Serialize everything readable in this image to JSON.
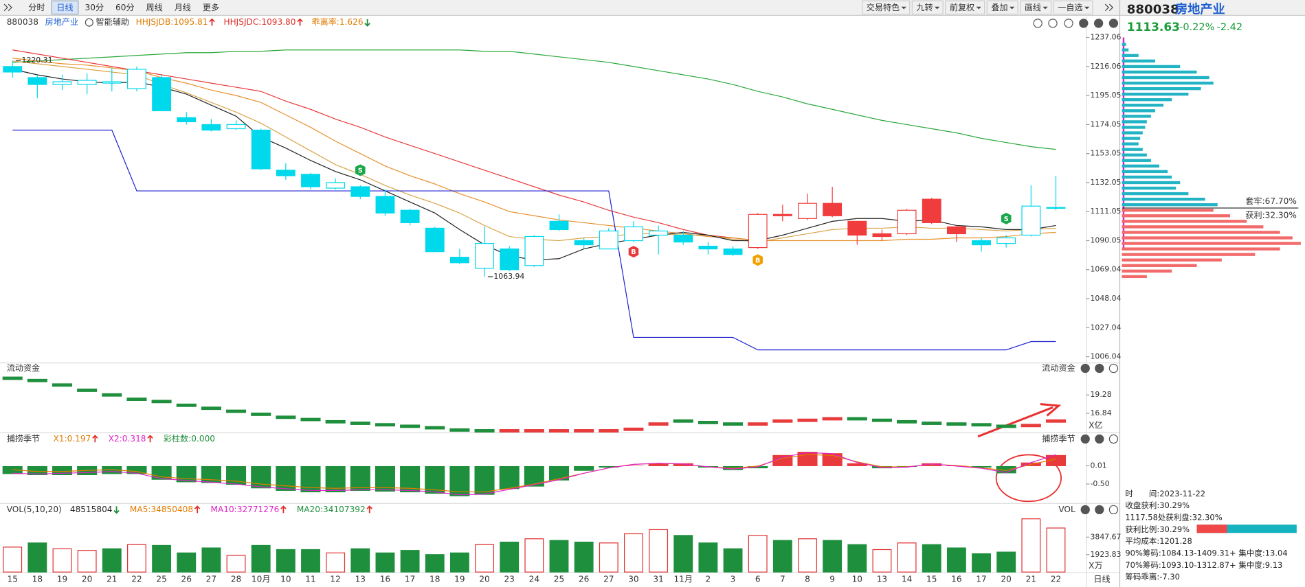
{
  "toolbar": {
    "left": [
      "分时",
      "日线",
      "30分",
      "60分",
      "周线",
      "月线",
      "更多"
    ],
    "active": 1,
    "right": [
      "交易特色",
      "九转",
      "前复权",
      "叠加",
      "画线",
      "一自选"
    ]
  },
  "quote": {
    "code": "880038",
    "name": "房地产业",
    "price": 1113.63,
    "change_pct": "-0.22%",
    "change": "-2.42"
  },
  "main": {
    "code": "880038",
    "name": "房地产业",
    "assist": "智能辅助",
    "legend": [
      {
        "text": "HHJSJDB:1095.81",
        "color": "#e07b00",
        "arrow": "up"
      },
      {
        "text": "HHJSJDC:1093.80",
        "color": "#e0302a",
        "arrow": "up"
      },
      {
        "text": "乖离率:1.626",
        "color": "#e07b00",
        "arrow": "down"
      }
    ],
    "ylim": [
      1006.04,
      1237.06
    ],
    "yticks": [
      1237.06,
      1216.06,
      1195.05,
      1174.05,
      1153.05,
      1132.05,
      1111.05,
      1090.05,
      1069.04,
      1048.04,
      1027.04,
      1006.04
    ],
    "dates": [
      "15",
      "18",
      "19",
      "20",
      "21",
      "22",
      "25",
      "26",
      "27",
      "28",
      "10月",
      "10",
      "11",
      "12",
      "13",
      "16",
      "17",
      "18",
      "19",
      "20",
      "23",
      "24",
      "25",
      "26",
      "27",
      "30",
      "31",
      "11月",
      "2",
      "3",
      "6",
      "7",
      "8",
      "9",
      "10",
      "13",
      "14",
      "15",
      "16",
      "17",
      "20",
      "21",
      "22"
    ],
    "candles": {
      "open": [
        1216,
        1208,
        1203,
        1203,
        1204,
        1200,
        1208,
        1179,
        1174,
        1171,
        1170,
        1141,
        1138,
        1128,
        1129,
        1122,
        1112,
        1099,
        1078,
        1070,
        1084,
        1072,
        1104,
        1090,
        1084,
        1090,
        1094,
        1094,
        1086,
        1084,
        1085,
        1108,
        1106,
        1117,
        1104,
        1093,
        1095,
        1120,
        1100,
        1090,
        1088,
        1094,
        1114
      ],
      "high": [
        1220.31,
        1210,
        1210,
        1211,
        1215,
        1216,
        1210,
        1183,
        1178,
        1177,
        1171,
        1146,
        1139,
        1135,
        1130,
        1127,
        1113,
        1100,
        1084,
        1100,
        1086,
        1094,
        1109,
        1092,
        1099,
        1104,
        1101,
        1097,
        1089,
        1086,
        1110,
        1116,
        1124,
        1129,
        1104,
        1098,
        1113,
        1121,
        1101,
        1092,
        1094,
        1130,
        1137
      ],
      "low": [
        1208,
        1193,
        1199,
        1196,
        1198,
        1198,
        1184,
        1174,
        1169,
        1170,
        1141,
        1134,
        1127,
        1127,
        1120,
        1108,
        1101,
        1082,
        1073,
        1063.94,
        1068,
        1071,
        1097,
        1084,
        1084,
        1089,
        1080,
        1087,
        1080,
        1079,
        1084,
        1104,
        1105,
        1107,
        1087,
        1090,
        1094,
        1102,
        1089,
        1082,
        1085,
        1093,
        1112
      ],
      "close": [
        1212,
        1203,
        1205,
        1206,
        1205,
        1214,
        1184,
        1176,
        1170,
        1174,
        1142,
        1137,
        1129,
        1132,
        1122,
        1110,
        1103,
        1082,
        1074,
        1088,
        1069,
        1093,
        1098,
        1087,
        1097,
        1100,
        1097,
        1089,
        1084,
        1080,
        1109,
        1109,
        1117,
        1108,
        1094,
        1095,
        1112,
        1103,
        1095,
        1087,
        1092,
        1115,
        1113.63
      ],
      "colors": [
        "#00d8ec",
        "#00d8ec",
        "#00d8ec",
        "#00d8ec",
        "#00d8ec",
        "#00d8ec",
        "#00d8ec",
        "#00d8ec",
        "#00d8ec",
        "#00d8ec",
        "#00d8ec",
        "#00d8ec",
        "#00d8ec",
        "#00d8ec",
        "#00d8ec",
        "#00d8ec",
        "#00d8ec",
        "#00d8ec",
        "#00d8ec",
        "#00d8ec",
        "#00d8ec",
        "#00d8ec",
        "#00d8ec",
        "#00d8ec",
        "#00d8ec",
        "#00d8ec",
        "#00d8ec",
        "#00d8ec",
        "#00d8ec",
        "#00d8ec",
        "#f03c3c",
        "#f03c3c",
        "#f03c3c",
        "#f03c3c",
        "#f03c3c",
        "#f03c3c",
        "#f03c3c",
        "#f03c3c",
        "#f03c3c",
        "#00d8ec",
        "#00d8ec",
        "#00d8ec",
        "#00d8ec"
      ],
      "hollow": [
        false,
        false,
        true,
        true,
        true,
        true,
        false,
        false,
        false,
        true,
        false,
        false,
        false,
        true,
        false,
        false,
        false,
        false,
        false,
        true,
        false,
        true,
        false,
        false,
        true,
        true,
        true,
        false,
        false,
        false,
        true,
        false,
        true,
        false,
        false,
        false,
        true,
        false,
        false,
        false,
        true,
        true,
        false
      ]
    },
    "lines": [
      {
        "color": "#2aa83a",
        "values": [
          1219,
          1220,
          1221,
          1222,
          1223,
          1224,
          1225,
          1226,
          1226,
          1227,
          1227,
          1228,
          1228,
          1228,
          1228,
          1228,
          1228,
          1228,
          1228,
          1227,
          1227,
          1225,
          1223,
          1221,
          1219,
          1216,
          1213,
          1210,
          1207,
          1203,
          1198,
          1194,
          1189,
          1185,
          1181,
          1177,
          1174,
          1171,
          1168,
          1164,
          1161,
          1158,
          1156
        ]
      },
      {
        "color": "#e83a3a",
        "values": [
          1228,
          1225,
          1222,
          1219,
          1216,
          1213,
          1210,
          1207,
          1204,
          1201,
          1198,
          1191,
          1185,
          1178,
          1172,
          1165,
          1159,
          1153,
          1147,
          1141,
          1135,
          1129,
          1123,
          1118,
          1112,
          1107,
          1103,
          1098,
          1094,
          1092,
          1090,
          null,
          null,
          null,
          null,
          null,
          null,
          null,
          null,
          null,
          null,
          null,
          null
        ]
      },
      {
        "color": "#e8902a",
        "values": [
          1222,
          1220,
          1218,
          1217,
          1215,
          1213,
          1208,
          1204,
          1199,
          1195,
          1190,
          1181,
          1172,
          1162,
          1153,
          1144,
          1137,
          1131,
          1124,
          1118,
          1111,
          1108,
          1105,
          1103,
          1101,
          1099,
          1097,
          1095,
          1093,
          1092,
          1090,
          1090,
          1090,
          1090,
          1090,
          1090,
          1091,
          1091,
          1092,
          1092,
          1093,
          1095,
          1096
        ]
      },
      {
        "color": "#d9a54a",
        "values": [
          1220,
          1218,
          1216,
          1214,
          1212,
          1210,
          1203,
          1197,
          1190,
          1183,
          1175,
          1165,
          1155,
          1145,
          1138,
          1130,
          1123,
          1117,
          1110,
          1101,
          1093,
          1091,
          1090,
          1092,
          1093,
          1095,
          1095,
          1094,
          1094,
          1091,
          1089,
          1092,
          1095,
          1098,
          1099,
          1099,
          1100,
          1099,
          1099,
          1098,
          1097,
          1098,
          1099
        ]
      },
      {
        "color": "#222222",
        "values": [
          1214,
          1210,
          1207,
          1205,
          1204,
          1205,
          1201,
          1196,
          1188,
          1180,
          1165,
          1157,
          1148,
          1140,
          1134,
          1126,
          1118,
          1110,
          1098,
          1087,
          1079,
          1076,
          1077,
          1084,
          1088,
          1091,
          1094,
          1096,
          1094,
          1090,
          1090,
          1094,
          1099,
          1104,
          1106,
          1106,
          1104,
          1105,
          1101,
          1100,
          1098,
          1098,
          1101
        ]
      },
      {
        "color": "#2020d0",
        "values": [
          1170,
          1170,
          1170,
          1170,
          1170,
          1126,
          1126,
          1126,
          1126,
          1126,
          1126,
          1126,
          1126,
          1126,
          1126,
          1126,
          1126,
          1126,
          1126,
          1126,
          1126,
          1126,
          1126,
          1126,
          1126,
          1020,
          1020,
          1020,
          1020,
          1020,
          1011,
          1011,
          1011,
          1011,
          1011,
          1011,
          1011,
          1011,
          1011,
          1011,
          1011,
          1017,
          1017
        ]
      }
    ],
    "annotations": [
      {
        "value": 1220.31,
        "index": 0
      },
      {
        "value": 1063.94,
        "index": 19
      }
    ],
    "signals": [
      {
        "text": "S",
        "index": 14,
        "value": 1141,
        "color": "#1aa84a"
      },
      {
        "text": "B",
        "index": 25,
        "value": 1082,
        "color": "#e83a3a"
      },
      {
        "text": "B",
        "index": 30,
        "value": 1076,
        "color": "#f0a000"
      },
      {
        "text": "S",
        "index": 40,
        "value": 1106,
        "color": "#1aa84a"
      }
    ]
  },
  "chips": {
    "levels": [
      1232,
      1228,
      1224,
      1220,
      1216,
      1212,
      1208,
      1204,
      1200,
      1196,
      1192,
      1188,
      1184,
      1180,
      1176,
      1172,
      1168,
      1164,
      1160,
      1156,
      1152,
      1148,
      1144,
      1140,
      1136,
      1132,
      1128,
      1124,
      1120,
      1116,
      1112,
      1108,
      1104,
      1100,
      1096,
      1092,
      1088,
      1084,
      1080,
      1076,
      1072,
      1068,
      1064
    ],
    "amounts": [
      5,
      8,
      20,
      40,
      70,
      90,
      105,
      110,
      95,
      80,
      60,
      50,
      40,
      35,
      30,
      28,
      25,
      22,
      20,
      25,
      30,
      35,
      45,
      55,
      60,
      70,
      65,
      80,
      100,
      115,
      110,
      130,
      150,
      170,
      190,
      205,
      215,
      190,
      160,
      120,
      90,
      60,
      30
    ],
    "above_color": "#22b4c4",
    "below_color": "#f26a6a",
    "trapped_label": "套牢:67.70%",
    "profit_label": "获利:32.30%"
  },
  "flow": {
    "title": "流动资金",
    "unit": "X亿",
    "ylim": [
      14.29,
      23.49
    ],
    "yticks": [
      19.28,
      16.84
    ],
    "values": [
      21.5,
      21.2,
      20.6,
      19.9,
      19.28,
      18.7,
      18.4,
      17.9,
      17.5,
      17.1,
      16.7,
      16.3,
      16.0,
      15.7,
      15.5,
      15.3,
      15.1,
      14.9,
      14.6,
      14.5,
      14.5,
      14.5,
      14.5,
      14.5,
      14.5,
      14.7,
      15.4,
      15.8,
      15.6,
      15.4,
      15.4,
      15.8,
      15.9,
      16.1,
      16.1,
      15.9,
      15.7,
      15.5,
      15.4,
      15.3,
      15.1,
      15.2,
      15.8
    ],
    "colors": [
      "#1e8f3c",
      "#1e8f3c",
      "#1e8f3c",
      "#1e8f3c",
      "#1e8f3c",
      "#1e8f3c",
      "#1e8f3c",
      "#1e8f3c",
      "#1e8f3c",
      "#1e8f3c",
      "#1e8f3c",
      "#1e8f3c",
      "#1e8f3c",
      "#1e8f3c",
      "#1e8f3c",
      "#1e8f3c",
      "#1e8f3c",
      "#1e8f3c",
      "#1e8f3c",
      "#1e8f3c",
      "#e83b3b",
      "#e83b3b",
      "#e83b3b",
      "#e83b3b",
      "#e83b3b",
      "#e83b3b",
      "#e83b3b",
      "#1e8f3c",
      "#1e8f3c",
      "#1e8f3c",
      "#e83b3b",
      "#e83b3b",
      "#e83b3b",
      "#e83b3b",
      "#1e8f3c",
      "#1e8f3c",
      "#1e8f3c",
      "#1e8f3c",
      "#1e8f3c",
      "#1e8f3c",
      "#1e8f3c",
      "#e83b3b",
      "#e83b3b"
    ]
  },
  "season": {
    "title": "捕捞季节",
    "legend": [
      {
        "text": "X1:0.197",
        "color": "#e07b00",
        "arrow": "up"
      },
      {
        "text": "X2:0.318",
        "color": "#e020c8",
        "arrow": "up"
      },
      {
        "text": "彩柱数:0.000",
        "color": "#1e8f3c",
        "arrow": null
      }
    ],
    "ylim": [
      -1.03,
      0.92
    ],
    "yticks": [
      0.01,
      {
        "value": -0.5,
        "label": "-0.50"
      }
    ],
    "bars": [
      -0.22,
      -0.25,
      -0.25,
      -0.25,
      -0.22,
      -0.22,
      -0.38,
      -0.45,
      -0.47,
      -0.52,
      -0.62,
      -0.69,
      -0.73,
      -0.73,
      -0.69,
      -0.71,
      -0.73,
      -0.77,
      -0.84,
      -0.8,
      -0.64,
      -0.57,
      -0.4,
      -0.13,
      -0.04,
      0.01,
      0.08,
      0.08,
      -0.04,
      -0.11,
      -0.06,
      0.31,
      0.4,
      0.36,
      0.08,
      -0.06,
      -0.02,
      0.08,
      0.01,
      -0.04,
      -0.2,
      0.1,
      0.31
    ],
    "up_color": "#e8393c",
    "down_color": "#1e8f3c",
    "lines": [
      {
        "color": "#e07b00",
        "values": [
          -0.1,
          -0.15,
          -0.15,
          -0.12,
          -0.1,
          -0.15,
          -0.3,
          -0.35,
          -0.38,
          -0.42,
          -0.5,
          -0.55,
          -0.6,
          -0.62,
          -0.6,
          -0.6,
          -0.62,
          -0.66,
          -0.72,
          -0.72,
          -0.62,
          -0.5,
          -0.35,
          -0.2,
          -0.05,
          0.05,
          0.08,
          0.06,
          -0.02,
          -0.06,
          0.0,
          0.22,
          0.32,
          0.3,
          0.12,
          -0.02,
          -0.02,
          0.05,
          0.02,
          -0.05,
          -0.12,
          0.05,
          0.197
        ]
      },
      {
        "color": "#e020c8",
        "values": [
          -0.2,
          -0.22,
          -0.2,
          -0.18,
          -0.15,
          -0.2,
          -0.35,
          -0.4,
          -0.45,
          -0.5,
          -0.58,
          -0.63,
          -0.68,
          -0.68,
          -0.66,
          -0.66,
          -0.68,
          -0.72,
          -0.8,
          -0.78,
          -0.65,
          -0.52,
          -0.38,
          -0.2,
          -0.05,
          0.05,
          0.08,
          0.06,
          -0.02,
          -0.08,
          -0.02,
          0.25,
          0.38,
          0.35,
          0.1,
          -0.04,
          -0.03,
          0.06,
          0.0,
          -0.06,
          -0.18,
          0.1,
          0.318
        ]
      }
    ]
  },
  "volume": {
    "title": "VOL(5,10,20)",
    "legend": [
      {
        "text": "48515804",
        "color": "#222222",
        "arrow": "down"
      },
      {
        "text": "MA5:34850408",
        "color": "#e07b00",
        "arrow": "up"
      },
      {
        "text": "MA10:32771276",
        "color": "#e020c8",
        "arrow": "up"
      },
      {
        "text": "MA20:34107392",
        "color": "#1e8f3c",
        "arrow": "up"
      }
    ],
    "unit": "X万",
    "ylim": [
      0,
      5955
    ],
    "yticks": [
      3847.67,
      1923.83
    ],
    "values": [
      2748,
      3206,
      2565,
      2382,
      2565,
      3023,
      2932,
      2107,
      2657,
      1832,
      2932,
      2473,
      2473,
      2107,
      2565,
      2107,
      2382,
      1924,
      2107,
      3023,
      3298,
      3664,
      3481,
      3298,
      3206,
      4214,
      4672,
      4031,
      3206,
      2565,
      4031,
      3481,
      3664,
      3481,
      3023,
      2473,
      3206,
      3023,
      2657,
      2015,
      2199,
      5863,
      4851.58
    ],
    "hollow": [
      true,
      false,
      true,
      true,
      false,
      true,
      false,
      false,
      false,
      true,
      false,
      false,
      false,
      true,
      false,
      false,
      false,
      false,
      false,
      true,
      false,
      true,
      false,
      false,
      true,
      true,
      true,
      false,
      false,
      false,
      true,
      false,
      true,
      false,
      false,
      true,
      true,
      false,
      false,
      false,
      false,
      true,
      true
    ]
  },
  "info": {
    "rows": [
      "时　　间:2023-11-22",
      "收盘获利:30.29%",
      "1117.58处获利盘:32.30%",
      "获利比例:30.29%",
      "平均成本:1201.28",
      "90%筹码:1084.13-1409.31+ 集中度:13.04",
      "70%筹码:1093.10-1312.87+ 集中度:9.13",
      "筹码乖离:-7.30"
    ],
    "profit_ratio": 30.29
  },
  "period": "日线"
}
